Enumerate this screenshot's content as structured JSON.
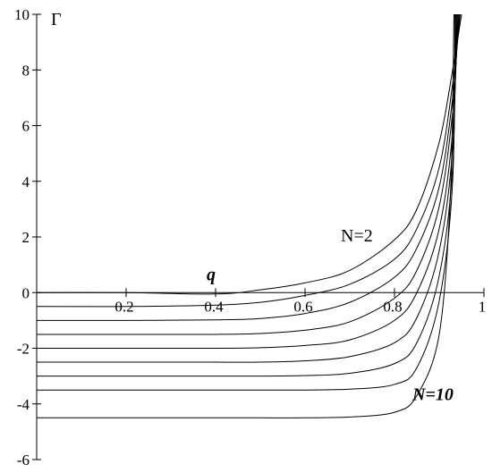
{
  "chart_data": {
    "type": "line",
    "title": "",
    "xlabel": "q",
    "ylabel": "Γ",
    "xlim": [
      0,
      1
    ],
    "ylim": [
      -6,
      10
    ],
    "x_ticks": [
      "0.2",
      "0.4",
      "0.6",
      "0.8",
      "1"
    ],
    "y_ticks": [
      "10",
      "8",
      "6",
      "4",
      "2",
      "0",
      "-2",
      "-4",
      "-6"
    ],
    "grid": false,
    "legend": "none",
    "annotations": [
      {
        "text": "N=2",
        "x": 0.72,
        "y": 2.1,
        "style": "normal"
      },
      {
        "text": "N=10",
        "x": 0.88,
        "y": -3.6,
        "style": "bold-italic"
      }
    ],
    "series": [
      {
        "N": 2,
        "x": [
          0,
          0.2,
          0.4,
          0.5,
          0.6,
          0.7,
          0.8,
          0.85,
          0.9,
          0.93,
          0.95
        ],
        "y": [
          0.0,
          0.0,
          -0.05,
          0.1,
          0.35,
          0.8,
          1.9,
          3.0,
          5.4,
          8.0,
          10.0
        ]
      },
      {
        "N": 3,
        "x": [
          0,
          0.2,
          0.4,
          0.5,
          0.6,
          0.7,
          0.8,
          0.85,
          0.9,
          0.93,
          0.947
        ],
        "y": [
          -0.5,
          -0.5,
          -0.45,
          -0.35,
          -0.1,
          0.3,
          1.2,
          2.3,
          4.5,
          7.5,
          10.0
        ]
      },
      {
        "N": 4,
        "x": [
          0,
          0.2,
          0.4,
          0.5,
          0.6,
          0.7,
          0.8,
          0.85,
          0.9,
          0.93,
          0.945
        ],
        "y": [
          -1.0,
          -1.0,
          -0.98,
          -0.93,
          -0.75,
          -0.35,
          0.55,
          1.6,
          3.8,
          7.0,
          10.0
        ]
      },
      {
        "N": 5,
        "x": [
          0,
          0.2,
          0.4,
          0.5,
          0.6,
          0.7,
          0.8,
          0.85,
          0.9,
          0.93,
          0.943
        ],
        "y": [
          -1.5,
          -1.5,
          -1.5,
          -1.47,
          -1.35,
          -1.05,
          -0.2,
          0.8,
          3.1,
          6.5,
          10.0
        ]
      },
      {
        "N": 6,
        "x": [
          0,
          0.2,
          0.4,
          0.5,
          0.6,
          0.7,
          0.8,
          0.85,
          0.9,
          0.93,
          0.941
        ],
        "y": [
          -2.0,
          -2.0,
          -2.0,
          -1.98,
          -1.9,
          -1.7,
          -1.0,
          0.0,
          2.3,
          5.8,
          10.0
        ]
      },
      {
        "N": 7,
        "x": [
          0,
          0.2,
          0.4,
          0.5,
          0.6,
          0.7,
          0.8,
          0.85,
          0.9,
          0.93,
          0.939
        ],
        "y": [
          -2.5,
          -2.5,
          -2.5,
          -2.5,
          -2.45,
          -2.3,
          -1.8,
          -0.9,
          1.5,
          5.2,
          10.0
        ]
      },
      {
        "N": 8,
        "x": [
          0,
          0.2,
          0.4,
          0.5,
          0.6,
          0.7,
          0.8,
          0.85,
          0.9,
          0.93,
          0.937
        ],
        "y": [
          -3.0,
          -3.0,
          -3.0,
          -3.0,
          -2.98,
          -2.9,
          -2.55,
          -1.8,
          0.6,
          4.5,
          10.0
        ]
      },
      {
        "N": 9,
        "x": [
          0,
          0.2,
          0.4,
          0.5,
          0.6,
          0.7,
          0.8,
          0.85,
          0.9,
          0.93,
          0.935
        ],
        "y": [
          -3.5,
          -3.5,
          -3.5,
          -3.5,
          -3.5,
          -3.47,
          -3.3,
          -2.7,
          -0.3,
          4.0,
          10.0
        ]
      },
      {
        "N": 10,
        "x": [
          0,
          0.2,
          0.4,
          0.5,
          0.6,
          0.7,
          0.8,
          0.85,
          0.9,
          0.925,
          0.933
        ],
        "y": [
          -4.5,
          -4.5,
          -4.5,
          -4.5,
          -4.5,
          -4.47,
          -4.3,
          -3.7,
          -1.5,
          3.5,
          10.0
        ]
      }
    ]
  }
}
